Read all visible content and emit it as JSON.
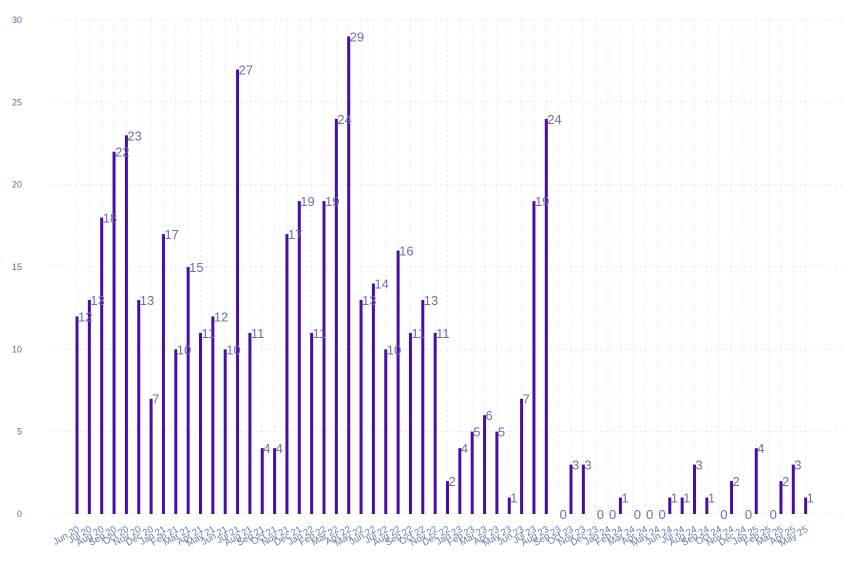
{
  "chart_data": {
    "type": "bar",
    "title": "",
    "xlabel": "",
    "ylabel": "",
    "ylim": [
      0,
      30
    ],
    "yticks": [
      0,
      5,
      10,
      15,
      20,
      25,
      30
    ],
    "grid": true,
    "bar_color": "#4b0ca6",
    "categories": [
      "Jun 20",
      "Jul 20",
      "Aug 20",
      "Sep 20",
      "Oct 20",
      "Nov 20",
      "Dec 20",
      "Jan 21",
      "Feb 21",
      "Mar 21",
      "Apr 21",
      "May 21",
      "Jun 21",
      "Jul 21",
      "Aug 21",
      "Sep 21",
      "Oct 21",
      "Nov 21",
      "Dec 21",
      "Jan 22",
      "Feb 22",
      "Mar 22",
      "Apr 22",
      "May 22",
      "Jun 22",
      "Jul 22",
      "Aug 22",
      "Sep 22",
      "Oct 22",
      "Nov 22",
      "Dec 22",
      "Jan 23",
      "Feb 23",
      "Mar 23",
      "Apr 23",
      "May 23",
      "Jun 23",
      "Jul 23",
      "Aug 23",
      "Sep 23",
      "Oct 23",
      "Nov 23",
      "Dec 23",
      "Jan 24",
      "Feb 24",
      "Mar 24",
      "Apr 24",
      "May 24",
      "Jun 24",
      "Jul 24",
      "Aug 24",
      "Sep 24",
      "Oct 24",
      "Nov 24",
      "Dec 24",
      "Jan 25",
      "Feb 25",
      "Mar 25",
      "Apr 25",
      "May 25"
    ],
    "values": [
      12,
      13,
      18,
      22,
      23,
      13,
      7,
      17,
      10,
      15,
      11,
      12,
      10,
      27,
      11,
      4,
      4,
      17,
      19,
      11,
      19,
      24,
      29,
      13,
      14,
      10,
      16,
      11,
      13,
      11,
      2,
      4,
      5,
      6,
      5,
      1,
      7,
      19,
      24,
      0,
      3,
      3,
      0,
      0,
      1,
      0,
      0,
      0,
      1,
      1,
      3,
      1,
      0,
      2,
      0,
      4,
      0,
      2,
      3,
      1
    ],
    "data_labels": [
      "12",
      "13",
      "18",
      "22",
      "23",
      "13",
      "7",
      "17",
      "10",
      "15",
      "11",
      "12",
      "10",
      "27",
      "11",
      "4",
      "4",
      "17",
      "19",
      "11",
      "19",
      "24",
      "29",
      "13",
      "14",
      "10",
      "16",
      "11",
      "13",
      "11",
      "2",
      "4",
      "5",
      "6",
      "5",
      "1",
      "7",
      "19",
      "24",
      "0",
      "3",
      "3",
      "0",
      "0",
      "1",
      "0",
      "0",
      "0",
      "1",
      "1",
      "3",
      "1",
      "0",
      "2",
      "0",
      "4",
      "0",
      "2",
      "3",
      "1"
    ]
  }
}
